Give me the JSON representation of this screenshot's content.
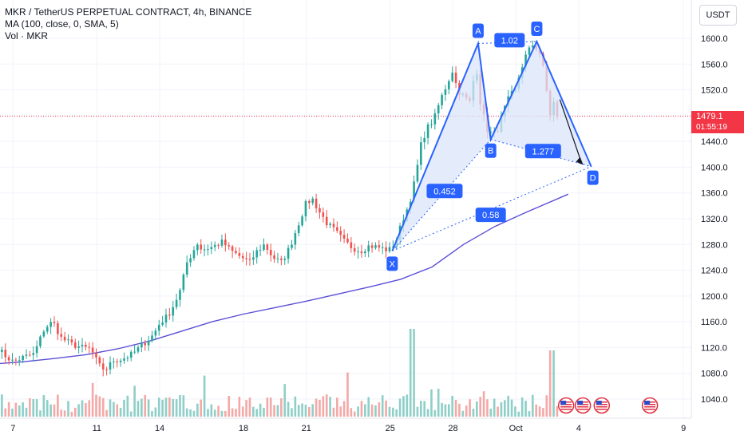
{
  "legend": {
    "title": "MKR / TetherUS PERPETUAL CONTRACT, 4h, BINANCE",
    "ma": "MA (100, close, 0, SMA, 5)",
    "vol": "Vol · MKR"
  },
  "currency": "USDT",
  "last_price": {
    "value": "1479.1",
    "countdown": "01:55:19"
  },
  "colors": {
    "up": "#26a69a",
    "down": "#ef5350",
    "vol_up": "#8fcfc8",
    "vol_down": "#f3a9a7",
    "ma": "#5b4fd6",
    "pattern": "#2962ff",
    "pattern_fill": "#dbe5fb",
    "price_line": "#f23645"
  },
  "chart_data": {
    "type": "candlestick",
    "y_ticks": [
      1040,
      1080,
      1120,
      1160,
      1200,
      1240,
      1280,
      1320,
      1360,
      1400,
      1440,
      1480,
      1520,
      1560,
      1600
    ],
    "y_tick_labels": [
      "1040.0",
      "1080.0",
      "1120.0",
      "1160.0",
      "1200.0",
      "1240.0",
      "1280.0",
      "1320.0",
      "1360.0",
      "1400.0",
      "1440.0",
      "1520.0",
      "1560.0",
      "1600.0"
    ],
    "x_tick_labels": [
      "7",
      "11",
      "14",
      "18",
      "21",
      "25",
      "28",
      "Oct",
      "4",
      "9"
    ],
    "x_ticks_day": [
      7,
      11,
      14,
      18,
      21,
      25,
      28,
      31,
      34,
      39
    ],
    "ylim": [
      1010,
      1640
    ],
    "xlim_day": [
      6.3,
      39.3
    ],
    "anchors": [
      [
        6.3,
        1118
      ],
      [
        6.6,
        1108
      ],
      [
        7.0,
        1098
      ],
      [
        7.5,
        1105
      ],
      [
        8.0,
        1110
      ],
      [
        8.5,
        1150
      ],
      [
        8.9,
        1160
      ],
      [
        9.3,
        1135
      ],
      [
        9.8,
        1125
      ],
      [
        10.3,
        1120
      ],
      [
        10.7,
        1118
      ],
      [
        11.1,
        1092
      ],
      [
        11.4,
        1085
      ],
      [
        11.8,
        1100
      ],
      [
        12.2,
        1102
      ],
      [
        12.7,
        1110
      ],
      [
        13.2,
        1125
      ],
      [
        13.7,
        1140
      ],
      [
        14.0,
        1158
      ],
      [
        14.4,
        1170
      ],
      [
        14.7,
        1188
      ],
      [
        15.0,
        1210
      ],
      [
        15.3,
        1252
      ],
      [
        15.6,
        1270
      ],
      [
        15.8,
        1282
      ],
      [
        16.0,
        1272
      ],
      [
        16.5,
        1276
      ],
      [
        17.0,
        1284
      ],
      [
        17.4,
        1270
      ],
      [
        17.8,
        1262
      ],
      [
        18.3,
        1252
      ],
      [
        18.6,
        1268
      ],
      [
        19.0,
        1280
      ],
      [
        19.4,
        1260
      ],
      [
        19.8,
        1252
      ],
      [
        20.2,
        1275
      ],
      [
        20.6,
        1310
      ],
      [
        21.0,
        1345
      ],
      [
        21.3,
        1350
      ],
      [
        21.6,
        1332
      ],
      [
        22.0,
        1312
      ],
      [
        22.4,
        1300
      ],
      [
        22.8,
        1285
      ],
      [
        23.2,
        1275
      ],
      [
        23.6,
        1270
      ],
      [
        24.0,
        1278
      ],
      [
        24.4,
        1276
      ],
      [
        24.8,
        1272
      ],
      [
        25.0,
        1272
      ],
      [
        25.3,
        1288
      ],
      [
        25.6,
        1318
      ],
      [
        25.9,
        1342
      ],
      [
        26.2,
        1382
      ],
      [
        26.5,
        1440
      ],
      [
        26.8,
        1462
      ],
      [
        27.1,
        1475
      ],
      [
        27.4,
        1505
      ],
      [
        27.7,
        1528
      ],
      [
        28.0,
        1552
      ],
      [
        28.2,
        1520
      ],
      [
        28.5,
        1510
      ],
      [
        28.8,
        1500
      ],
      [
        29.1,
        1560
      ],
      [
        29.3,
        1502
      ],
      [
        29.6,
        1460
      ],
      [
        29.9,
        1450
      ],
      [
        30.1,
        1456
      ],
      [
        30.4,
        1485
      ],
      [
        30.7,
        1510
      ],
      [
        31.0,
        1520
      ],
      [
        31.2,
        1548
      ],
      [
        31.5,
        1575
      ],
      [
        31.8,
        1590
      ],
      [
        32.1,
        1582
      ],
      [
        32.4,
        1540
      ],
      [
        32.6,
        1478
      ],
      [
        32.8,
        1500
      ],
      [
        33.0,
        1505
      ],
      [
        33.1,
        1479
      ]
    ],
    "ma100": [
      [
        6.3,
        1095
      ],
      [
        7.5,
        1098
      ],
      [
        9.0,
        1103
      ],
      [
        10.5,
        1109
      ],
      [
        12.0,
        1118
      ],
      [
        13.5,
        1130
      ],
      [
        15.0,
        1145
      ],
      [
        16.5,
        1160
      ],
      [
        18.0,
        1172
      ],
      [
        19.5,
        1182
      ],
      [
        21.0,
        1192
      ],
      [
        22.5,
        1203
      ],
      [
        24.0,
        1214
      ],
      [
        25.5,
        1226
      ],
      [
        27.0,
        1245
      ],
      [
        28.5,
        1280
      ],
      [
        30.0,
        1308
      ],
      [
        31.5,
        1330
      ],
      [
        33.5,
        1358
      ]
    ],
    "pattern": {
      "points": [
        {
          "label": "X",
          "day": 25.1,
          "price": 1270
        },
        {
          "label": "A",
          "day": 29.2,
          "price": 1592
        },
        {
          "label": "B",
          "day": 29.8,
          "price": 1443
        },
        {
          "label": "C",
          "day": 32.0,
          "price": 1595
        },
        {
          "label": "D",
          "day": 34.6,
          "price": 1401
        }
      ],
      "ratios": [
        {
          "label": "0.452",
          "day": 27.6,
          "price": 1363
        },
        {
          "label": "1.02",
          "day": 30.7,
          "price": 1597
        },
        {
          "label": "1.277",
          "day": 32.3,
          "price": 1425
        },
        {
          "label": "0.58",
          "day": 29.8,
          "price": 1326
        }
      ]
    },
    "last_price": 1479.1
  }
}
